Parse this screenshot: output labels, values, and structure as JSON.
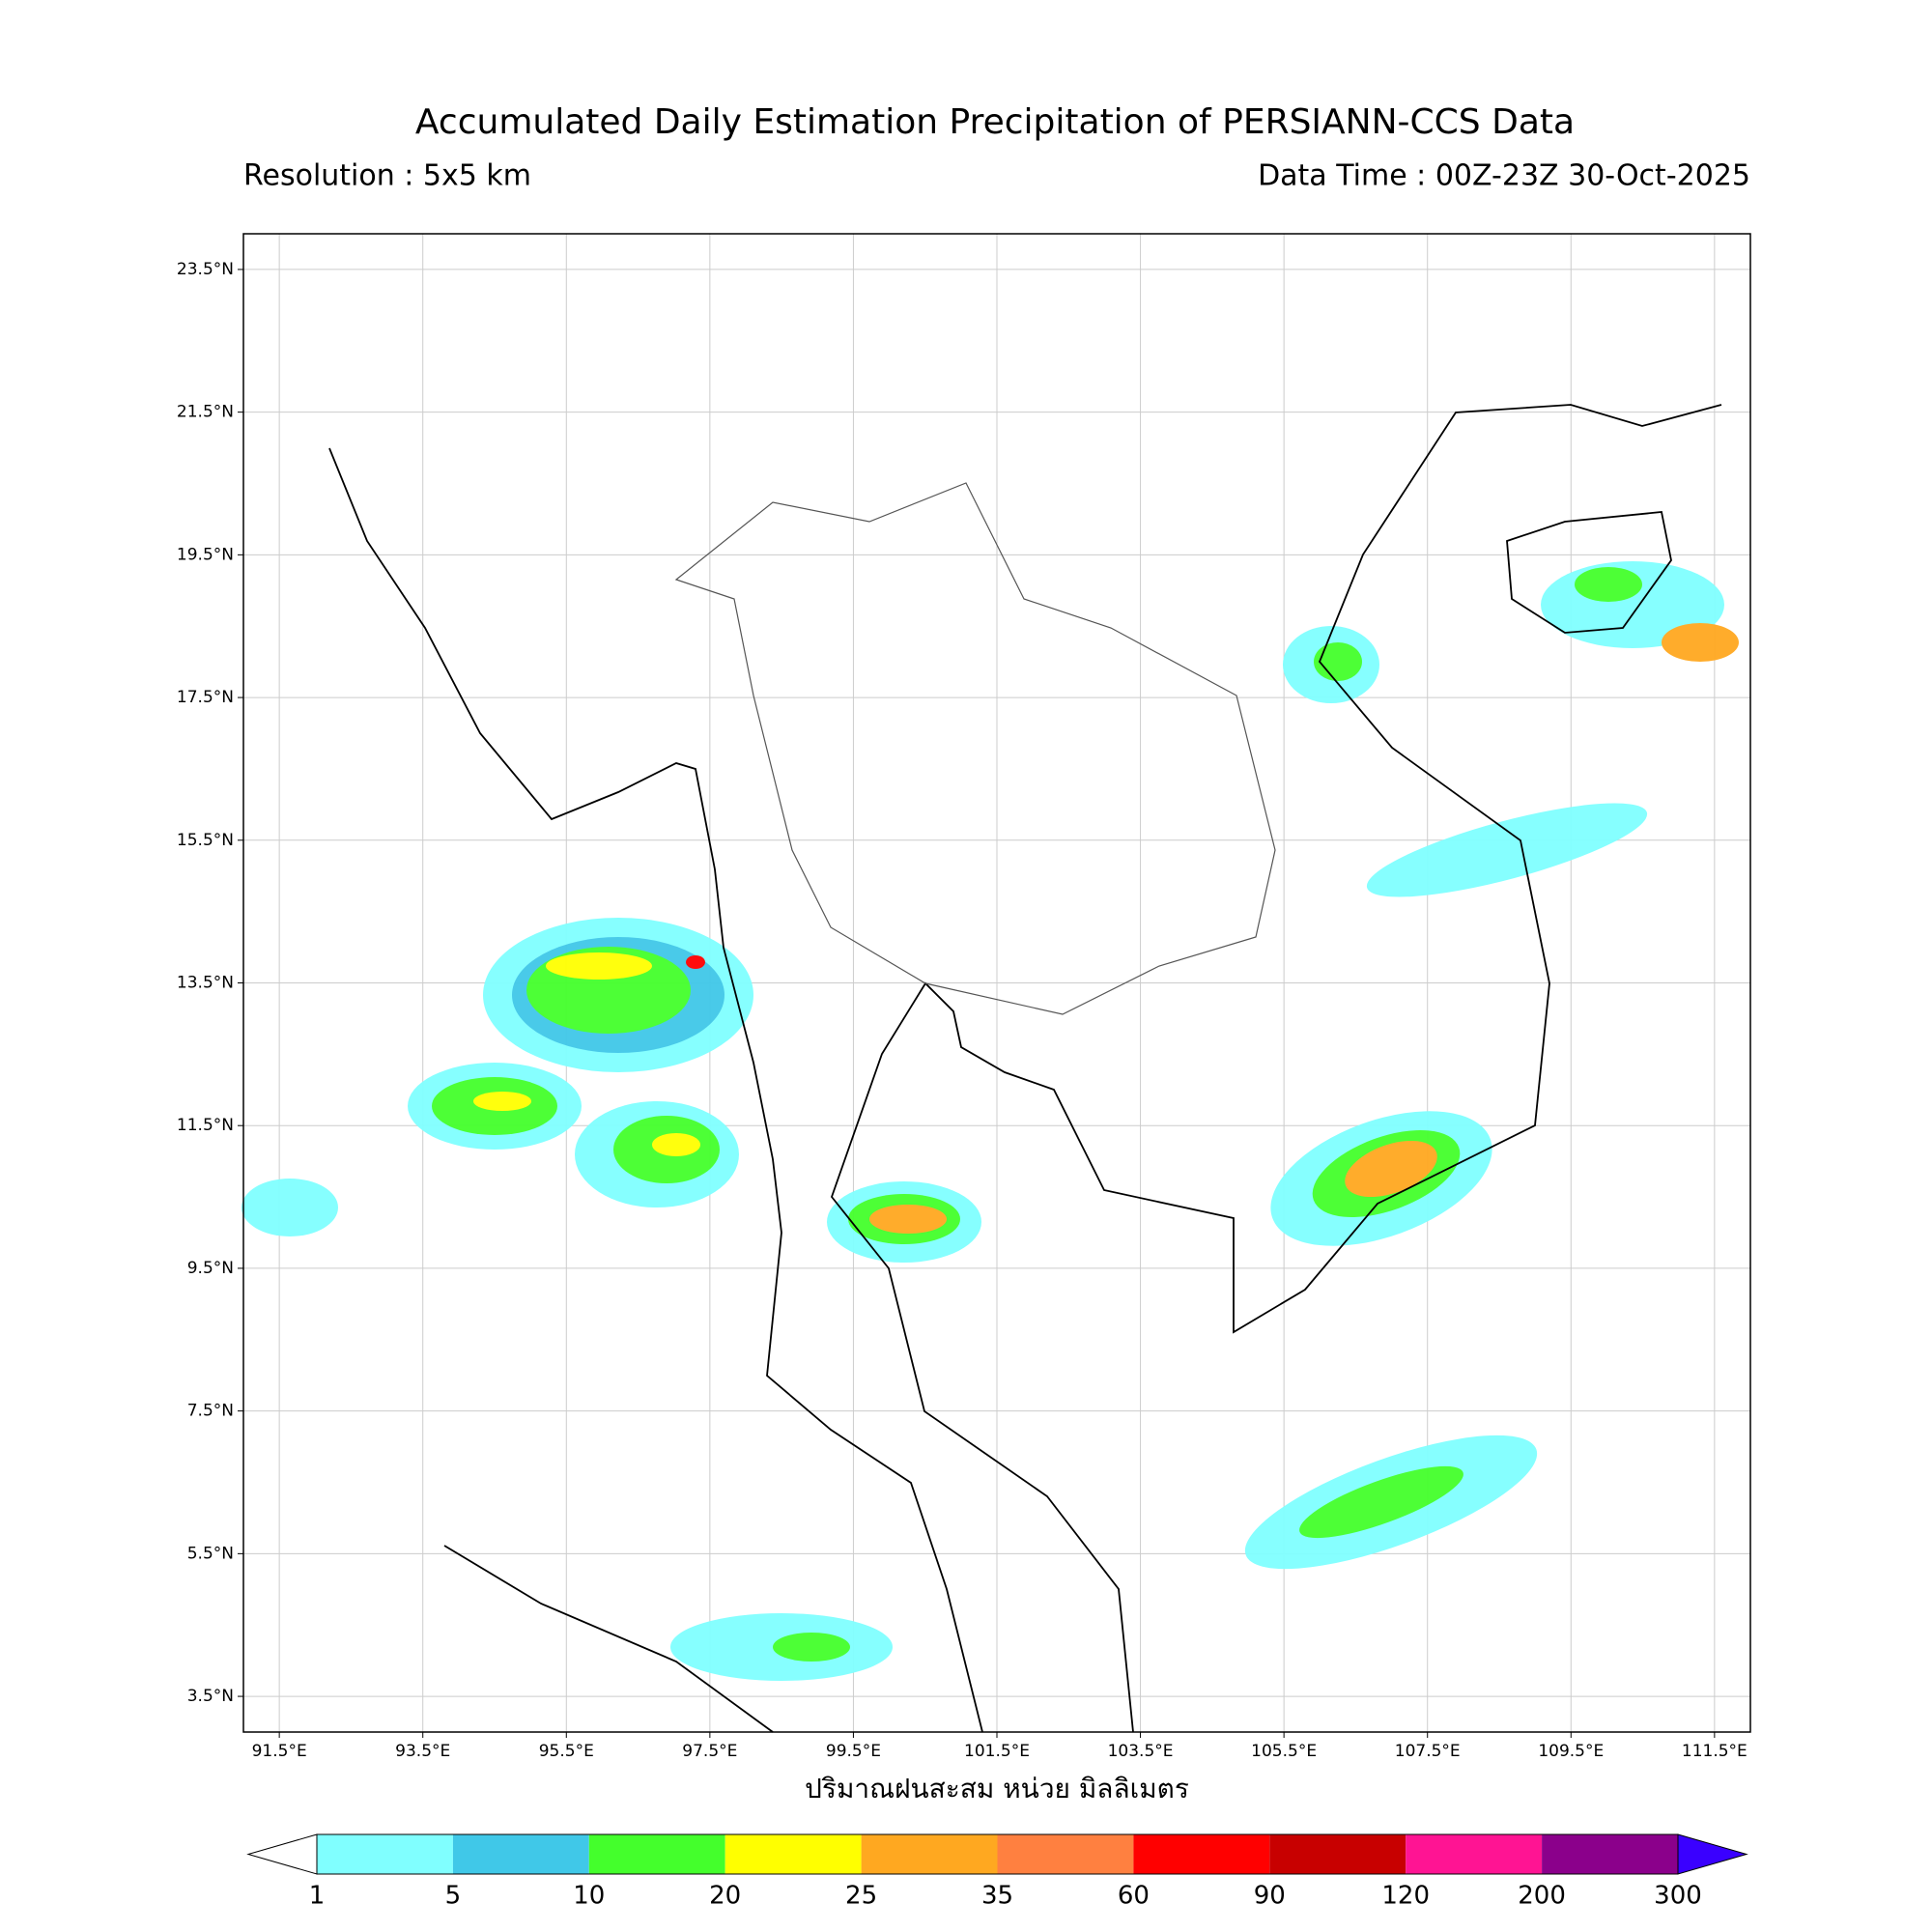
{
  "header": {
    "title": "Accumulated Daily Estimation Precipitation of PERSIANN-CCS Data",
    "resolution": "Resolution : 5x5 km",
    "data_time": "Data Time : 00Z-23Z 30-Oct-2025"
  },
  "map": {
    "xlim": [
      91,
      112
    ],
    "ylim": [
      3,
      24
    ],
    "xticks": [
      {
        "value": 91.5,
        "label": "91.5°E"
      },
      {
        "value": 93.5,
        "label": "93.5°E"
      },
      {
        "value": 95.5,
        "label": "95.5°E"
      },
      {
        "value": 97.5,
        "label": "97.5°E"
      },
      {
        "value": 99.5,
        "label": "99.5°E"
      },
      {
        "value": 101.5,
        "label": "101.5°E"
      },
      {
        "value": 103.5,
        "label": "103.5°E"
      },
      {
        "value": 105.5,
        "label": "105.5°E"
      },
      {
        "value": 107.5,
        "label": "107.5°E"
      },
      {
        "value": 109.5,
        "label": "109.5°E"
      },
      {
        "value": 111.5,
        "label": "111.5°E"
      }
    ],
    "yticks": [
      {
        "value": 3.5,
        "label": "3.5°N"
      },
      {
        "value": 5.5,
        "label": "5.5°N"
      },
      {
        "value": 7.5,
        "label": "7.5°N"
      },
      {
        "value": 9.5,
        "label": "9.5°N"
      },
      {
        "value": 11.5,
        "label": "11.5°N"
      },
      {
        "value": 13.5,
        "label": "13.5°N"
      },
      {
        "value": 15.5,
        "label": "15.5°N"
      },
      {
        "value": 17.5,
        "label": "17.5°N"
      },
      {
        "value": 19.5,
        "label": "19.5°N"
      },
      {
        "value": 21.5,
        "label": "21.5°N"
      },
      {
        "value": 23.5,
        "label": "23.5°N"
      }
    ],
    "x_label": "ปริมาณฝนสะสม หน่วย มิลลิเมตร"
  },
  "colorbar": {
    "bounds": [
      1,
      5,
      10,
      20,
      25,
      35,
      60,
      90,
      120,
      200,
      300
    ],
    "colors": [
      "#80ffff",
      "#40c8e8",
      "#44ff2c",
      "#ffff00",
      "#ffa820",
      "#ff8040",
      "#ff0000",
      "#c80000",
      "#ff1493",
      "#8b008b"
    ],
    "under_color": "#ffffff",
    "over_color": "#3a00ff"
  }
}
